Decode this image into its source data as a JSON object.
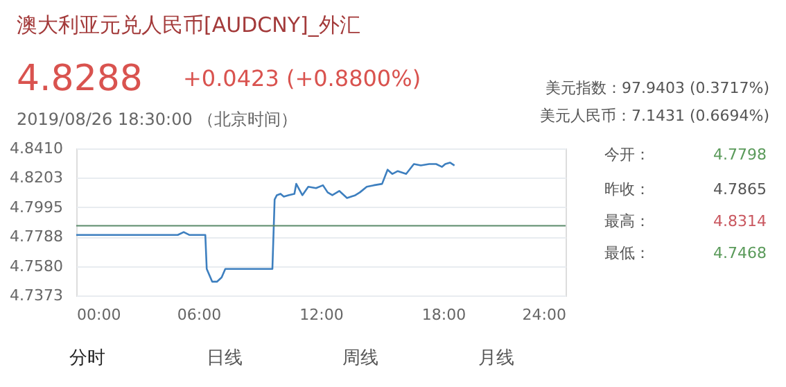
{
  "chart_data": {
    "type": "line",
    "title": "澳大利亚元兑人民币[AUDCNY]_外汇",
    "annotations": [
      "4.8288",
      "+0.0423 (+0.8800%)",
      "2019/08/26 18:30:00  （北京时间）",
      "美元指数：97.9403 (0.3717%)",
      "美元人民币：7.1431 (0.6694%)",
      "今开：",
      "4.7798",
      "昨收：",
      "4.7865",
      "最高：",
      "4.8314",
      "最低：",
      "4.7468",
      "分时",
      "日线",
      "周线",
      "月线"
    ],
    "x": [
      0,
      4.52,
      4.75,
      4.98,
      5.27,
      5.54,
      6.33,
      6.4,
      6.67,
      6.9,
      7.13,
      7.31,
      9.62,
      9.73,
      9.84,
      10.02,
      10.18,
      10.41,
      10.7,
      10.79,
      11.09,
      11.38,
      11.76,
      12.1,
      12.33,
      12.56,
      12.9,
      13.28,
      13.69,
      13.91,
      14.25,
      14.59,
      15.0,
      15.27,
      15.5,
      15.77,
      16.18,
      16.56,
      16.9,
      17.31,
      17.65,
      17.94,
      18.1,
      18.33,
      18.55
    ],
    "series": [
      {
        "color": "#3d7fbf",
        "values": [
          4.78,
          4.78,
          4.78,
          4.78,
          4.782,
          4.78,
          4.78,
          4.756,
          4.747,
          4.747,
          4.75,
          4.756,
          4.756,
          4.805,
          4.808,
          4.809,
          4.807,
          4.808,
          4.809,
          4.816,
          4.808,
          4.814,
          4.813,
          4.815,
          4.81,
          4.808,
          4.811,
          4.806,
          4.808,
          4.81,
          4.814,
          4.815,
          4.816,
          4.826,
          4.823,
          4.825,
          4.823,
          4.83,
          4.829,
          4.83,
          4.83,
          4.828,
          4.83,
          4.831,
          4.829
        ]
      }
    ],
    "xlim": [
      0,
      24
    ],
    "xticks": [
      {
        "value": 0,
        "label": "00:00"
      },
      {
        "value": 6,
        "label": "06:00"
      },
      {
        "value": 12,
        "label": "12:00"
      },
      {
        "value": 18,
        "label": "18:00"
      },
      {
        "value": 24,
        "label": "24:00"
      }
    ],
    "ylim": [
      4.7373,
      4.841
    ],
    "yticks": [
      {
        "value": 4.7373,
        "label": "4.7373"
      },
      {
        "value": 4.758,
        "label": "4.7580"
      },
      {
        "value": 4.7788,
        "label": "4.7788"
      },
      {
        "value": 4.7995,
        "label": "4.7995"
      },
      {
        "value": 4.8203,
        "label": "4.8203"
      },
      {
        "value": 4.841,
        "label": "4.8410"
      }
    ],
    "ref_lines": [
      {
        "axis": "y",
        "value": 4.7865,
        "color": "#5b8a6b"
      }
    ],
    "grid": "y",
    "line_style": "solid",
    "marker": "none"
  }
}
